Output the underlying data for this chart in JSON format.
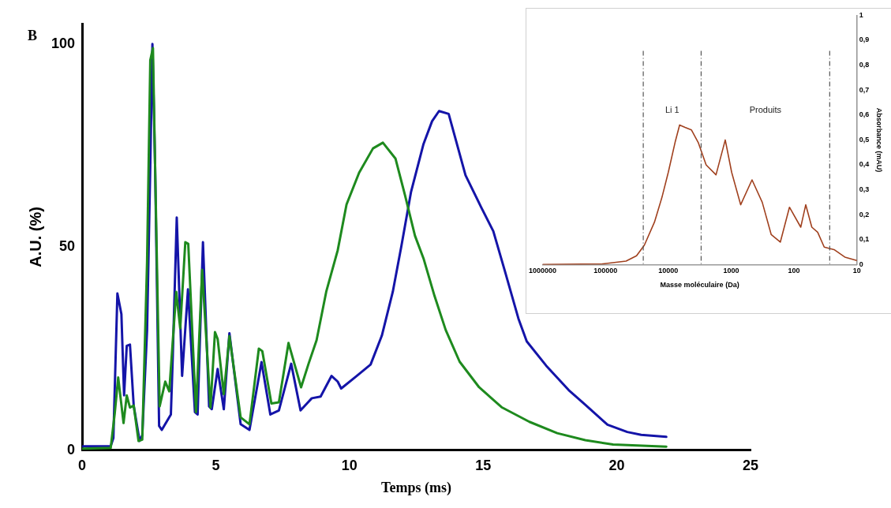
{
  "chart_data": [
    {
      "type": "line",
      "annotations": [
        "B"
      ],
      "xlabel": "Temps (ms)",
      "ylabel": "A.U. (%)",
      "xlim": [
        0,
        25
      ],
      "xticks": [
        0,
        5,
        10,
        15,
        20,
        25
      ],
      "ylim": [
        0,
        105
      ],
      "yticks": [
        0,
        50,
        100
      ],
      "grid": false,
      "legend": false,
      "series": [
        {
          "color": "#1e8a1e",
          "x": [
            0.01,
            1.07,
            1.22,
            1.35,
            1.55,
            1.67,
            1.79,
            1.93,
            2.11,
            2.25,
            2.43,
            2.55,
            2.65,
            2.73,
            2.9,
            3.11,
            3.26,
            3.52,
            3.67,
            3.86,
            3.97,
            4.26,
            4.49,
            4.8,
            4.97,
            5.07,
            5.3,
            5.51,
            5.93,
            6.26,
            6.61,
            6.74,
            7.08,
            7.36,
            7.72,
            8.19,
            8.47,
            8.77,
            9.13,
            9.56,
            9.89,
            10.36,
            10.88,
            11.25,
            11.72,
            12.08,
            12.45,
            12.77,
            13.18,
            13.6,
            14.12,
            14.85,
            15.69,
            16.73,
            17.77,
            18.82,
            19.86,
            21.85
          ],
          "values": [
            0.4,
            0.6,
            9,
            17.9,
            6.7,
            13.5,
            10.5,
            11,
            2.3,
            2.6,
            46.4,
            96,
            99,
            70,
            10.8,
            16.9,
            14.5,
            39,
            30,
            51.2,
            50.8,
            9.4,
            44.4,
            10.5,
            29.1,
            27.4,
            13.8,
            28.1,
            8.1,
            6.4,
            25,
            24.4,
            11.5,
            11.8,
            26.4,
            15.5,
            21.3,
            27.1,
            39,
            49.2,
            60.5,
            68.3,
            74.3,
            75.7,
            71.8,
            62.7,
            52.8,
            47.2,
            38,
            29.6,
            21.8,
            15.5,
            10.6,
            7,
            4.2,
            2.5,
            1.4,
            0.9
          ]
        },
        {
          "color": "#1414a8",
          "x": [
            0.01,
            1.07,
            1.17,
            1.32,
            1.47,
            1.57,
            1.67,
            1.79,
            1.93,
            2.15,
            2.25,
            2.43,
            2.55,
            2.63,
            2.73,
            2.88,
            2.98,
            3.32,
            3.39,
            3.54,
            3.74,
            3.96,
            4.22,
            4.32,
            4.52,
            4.75,
            4.85,
            5.07,
            5.3,
            5.51,
            5.93,
            6.26,
            6.71,
            7.04,
            7.36,
            7.82,
            8.17,
            8.59,
            8.92,
            9.33,
            9.56,
            9.69,
            10.27,
            10.79,
            11.21,
            11.62,
            11.94,
            12.3,
            12.77,
            13.09,
            13.35,
            13.71,
            14.34,
            14.92,
            15.38,
            15.8,
            16.32,
            16.63,
            17.36,
            18.2,
            18.82,
            19.65,
            20.39,
            20.91,
            21.85
          ],
          "values": [
            1,
            1,
            3,
            38.6,
            33.5,
            13.5,
            25.7,
            26,
            11,
            2.3,
            3.7,
            29.5,
            70,
            100,
            70,
            6,
            5,
            8.8,
            22.7,
            57.3,
            18.3,
            39.6,
            9.4,
            8.8,
            51.2,
            10.8,
            10.1,
            20,
            10.1,
            28.8,
            6.4,
            5,
            21.7,
            8.8,
            9.8,
            21.3,
            9.8,
            12.8,
            13.2,
            18.3,
            16.9,
            15.2,
            18.3,
            21.1,
            28.2,
            39,
            50.2,
            63.5,
            75.4,
            81,
            83.5,
            82.8,
            67.7,
            59.9,
            53.9,
            44.4,
            32.4,
            26.8,
            20.8,
            14.8,
            11.2,
            6.3,
            4.5,
            3.8,
            3.3
          ]
        }
      ]
    },
    {
      "type": "line",
      "xlabel": "Masse moléculaire (Da)",
      "y2label": "Absorbance (mAU)",
      "log": "x",
      "xlim": [
        1000000,
        10
      ],
      "xticks": [
        1000000,
        100000,
        10000,
        1000,
        100,
        10
      ],
      "y2lim": [
        0,
        1
      ],
      "y2ticks": [
        0,
        {
          "value": 0.1,
          "label": "0,1"
        },
        {
          "value": 0.2,
          "label": "0,2"
        },
        {
          "value": 0.3,
          "label": "0,3"
        },
        {
          "value": 0.4,
          "label": "0,4"
        },
        {
          "value": 0.5,
          "label": "0,5"
        },
        {
          "value": 0.6,
          "label": "0,6"
        },
        {
          "value": 0.7,
          "label": "0,7"
        },
        {
          "value": 0.8,
          "label": "0,8"
        },
        {
          "value": 0.9,
          "label": "0,9"
        },
        1
      ],
      "grid": false,
      "legend": false,
      "ref_lines": [
        {
          "axis": "x",
          "value": 25000,
          "color": "#555555",
          "line_style": "dashed"
        },
        {
          "axis": "x",
          "value": 3000,
          "color": "#555555",
          "line_style": "dashed"
        },
        {
          "axis": "x",
          "value": 27,
          "color": "#555555",
          "line_style": "dashed"
        }
      ],
      "annotations": [
        "Li 1",
        "Produits"
      ],
      "series": [
        {
          "color": "#a0401e",
          "axis": "y2",
          "x": [
            1000000,
            110000,
            47000,
            32000,
            24000,
            16600,
            12600,
            10000,
            7800,
            6600,
            5400,
            4270,
            3340,
            2500,
            1740,
            1240,
            980,
            705,
            465,
            320,
            230,
            165,
            118,
            78,
            65,
            52,
            42,
            33,
            23,
            15.5,
            10
          ],
          "values": [
            0,
            0.003,
            0.014,
            0.035,
            0.078,
            0.17,
            0.27,
            0.37,
            0.49,
            0.56,
            0.55,
            0.54,
            0.49,
            0.4,
            0.36,
            0.5,
            0.37,
            0.24,
            0.34,
            0.25,
            0.12,
            0.09,
            0.23,
            0.15,
            0.24,
            0.15,
            0.13,
            0.07,
            0.06,
            0.03,
            0.016
          ]
        }
      ]
    }
  ]
}
